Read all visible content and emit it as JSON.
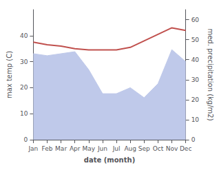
{
  "chart_data": {
    "type": "line",
    "xlabel": "date (month)",
    "ylabel": "max temp (C)",
    "y2label": "med. precipitation (kg/m2)",
    "categories": [
      "Jan",
      "Feb",
      "Mar",
      "Apr",
      "May",
      "Jun",
      "Jul",
      "Aug",
      "Sep",
      "Oct",
      "Nov",
      "Dec"
    ],
    "series": [
      {
        "type": "area",
        "axis": "y2",
        "color": "#bfc9ea",
        "values": [
          43,
          42,
          43,
          44,
          35,
          23,
          23,
          26,
          21,
          28,
          45,
          39
        ]
      },
      {
        "type": "line",
        "color": "#c0504d",
        "values": [
          37.5,
          36.5,
          36.0,
          35.0,
          34.5,
          34.5,
          34.5,
          35.5,
          38.0,
          40.5,
          43.0,
          42.0
        ]
      }
    ],
    "ylim": [
      0,
      50
    ],
    "yticks": [
      0,
      10,
      20,
      30,
      40
    ],
    "y2lim": [
      0,
      65
    ],
    "y2ticks": [
      0,
      10,
      20,
      30,
      40,
      50,
      60
    ],
    "grid": false
  }
}
